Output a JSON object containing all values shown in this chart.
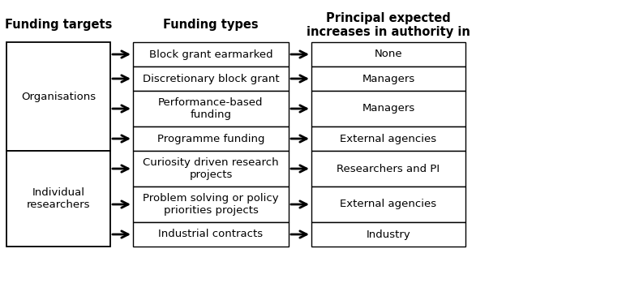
{
  "title_col1": "Funding targets",
  "title_col2": "Funding types",
  "title_col3": "Principal expected\nincreases in authority in",
  "col1_groups": [
    {
      "label": "Organisations"
    },
    {
      "label": "Individual\nresearchers"
    }
  ],
  "col2_items": [
    "Block grant earmarked",
    "Discretionary block grant",
    "Performance-based\nfunding",
    "Programme funding",
    "Curiosity driven research\nprojects",
    "Problem solving or policy\npriorities projects",
    "Industrial contracts"
  ],
  "col3_items": [
    "None",
    "Managers",
    "Managers",
    "External agencies",
    "Researchers and PI",
    "External agencies",
    "Industry"
  ],
  "bg_color": "#ffffff",
  "box_color": "#ffffff",
  "border_color": "#000000",
  "text_color": "#000000",
  "header_fontsize": 10.5,
  "cell_fontsize": 9.5
}
